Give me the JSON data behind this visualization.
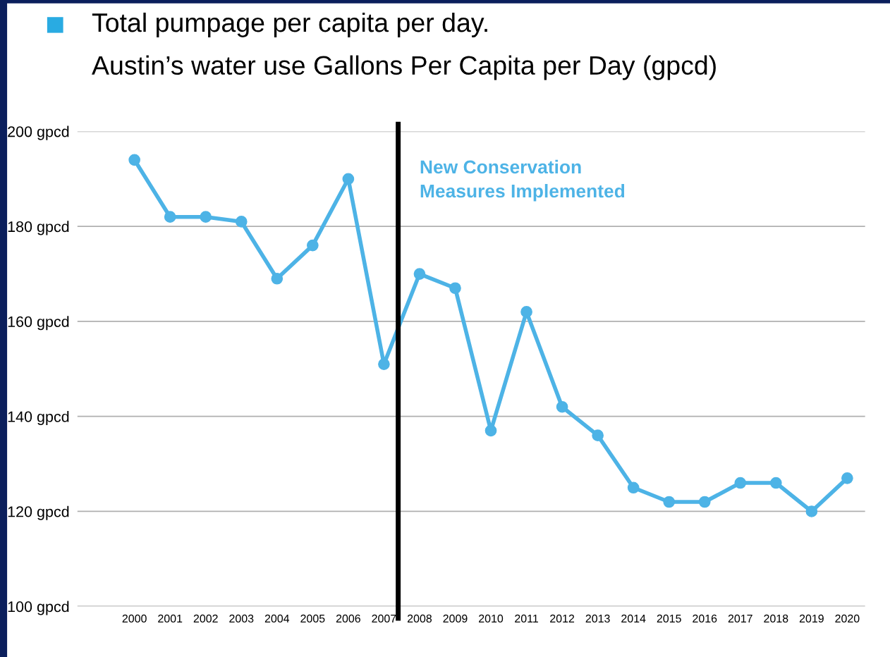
{
  "chart_data": {
    "type": "line",
    "title": "Total pumpage per capita per day.",
    "subtitle": "Austin’s water use Gallons Per Capita per Day (gpcd)",
    "x": [
      2000,
      2001,
      2002,
      2003,
      2004,
      2005,
      2006,
      2007,
      2008,
      2009,
      2010,
      2011,
      2012,
      2013,
      2014,
      2015,
      2016,
      2017,
      2018,
      2019,
      2020
    ],
    "series": [
      {
        "color": "#4db3e6",
        "values": [
          194,
          182,
          182,
          181,
          169,
          176,
          190,
          151,
          170,
          167,
          137,
          162,
          142,
          136,
          125,
          122,
          122,
          126,
          126,
          120,
          127
        ]
      }
    ],
    "xlim": [
      1998.4,
      2020.5
    ],
    "xticks": [
      2000,
      2001,
      2002,
      2003,
      2004,
      2005,
      2006,
      2007,
      2008,
      2009,
      2010,
      2011,
      2012,
      2013,
      2014,
      2015,
      2016,
      2017,
      2018,
      2019,
      2020
    ],
    "ylim": [
      100,
      200
    ],
    "yticks": [
      {
        "value": 100,
        "label": "100 gpcd"
      },
      {
        "value": 120,
        "label": "120 gpcd"
      },
      {
        "value": 140,
        "label": "140 gpcd"
      },
      {
        "value": 160,
        "label": "160 gpcd"
      },
      {
        "value": 180,
        "label": "180 gpcd"
      },
      {
        "value": 200,
        "label": "200 gpcd"
      }
    ],
    "ref_lines": [
      {
        "axis": "x",
        "value": 2007.4,
        "label": "New Conservation\nMeasures Implemented",
        "color": "#000000"
      }
    ],
    "grid": "y",
    "marker": "circle",
    "line_style": "solid",
    "legend": false
  }
}
